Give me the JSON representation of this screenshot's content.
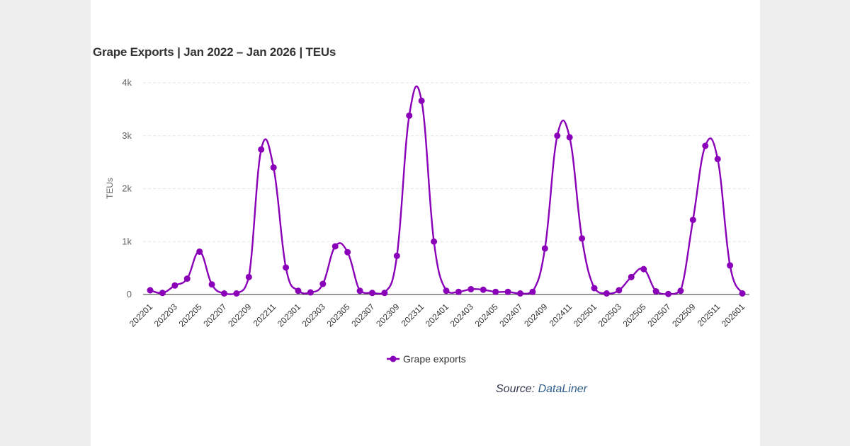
{
  "chart_data": {
    "type": "line",
    "title": "Grape Exports | Jan 2022 – Jan 2026 | TEUs",
    "ylabel": "TEUs",
    "xlabel": "",
    "ylim": [
      0,
      4000
    ],
    "y_ticks": [
      0,
      1000,
      2000,
      3000,
      4000
    ],
    "y_tick_labels": [
      "0",
      "1k",
      "2k",
      "3k",
      "4k"
    ],
    "grid": true,
    "legend_position": "bottom-center",
    "color": "#8a00b8",
    "categories": [
      "202201",
      "202202",
      "202203",
      "202204",
      "202205",
      "202206",
      "202207",
      "202208",
      "202209",
      "202210",
      "202211",
      "202212",
      "202301",
      "202302",
      "202303",
      "202304",
      "202305",
      "202306",
      "202307",
      "202308",
      "202309",
      "202310",
      "202311",
      "202312",
      "202401",
      "202402",
      "202403",
      "202404",
      "202405",
      "202406",
      "202407",
      "202408",
      "202409",
      "202410",
      "202411",
      "202412",
      "202501",
      "202502",
      "202503",
      "202504",
      "202505",
      "202506",
      "202507",
      "202508",
      "202509",
      "202510",
      "202511",
      "202512",
      "202601"
    ],
    "x_tick_labels": [
      "202201",
      "202203",
      "202205",
      "202207",
      "202209",
      "202211",
      "202301",
      "202303",
      "202305",
      "202307",
      "202309",
      "202311",
      "202401",
      "202403",
      "202405",
      "202407",
      "202409",
      "202411",
      "202501",
      "202503",
      "202505",
      "202507",
      "202509",
      "202511",
      "202601"
    ],
    "series": [
      {
        "name": "Grape exports",
        "values": [
          80,
          30,
          170,
          300,
          810,
          190,
          20,
          20,
          330,
          2740,
          2400,
          510,
          70,
          40,
          200,
          910,
          800,
          70,
          30,
          30,
          730,
          3380,
          3660,
          1000,
          70,
          50,
          100,
          90,
          50,
          50,
          20,
          50,
          870,
          3000,
          2970,
          1060,
          120,
          20,
          80,
          330,
          480,
          60,
          10,
          70,
          1410,
          2810,
          2560,
          550,
          20
        ]
      }
    ]
  },
  "source": {
    "label": "Source: ",
    "link_text": "DataLiner"
  }
}
